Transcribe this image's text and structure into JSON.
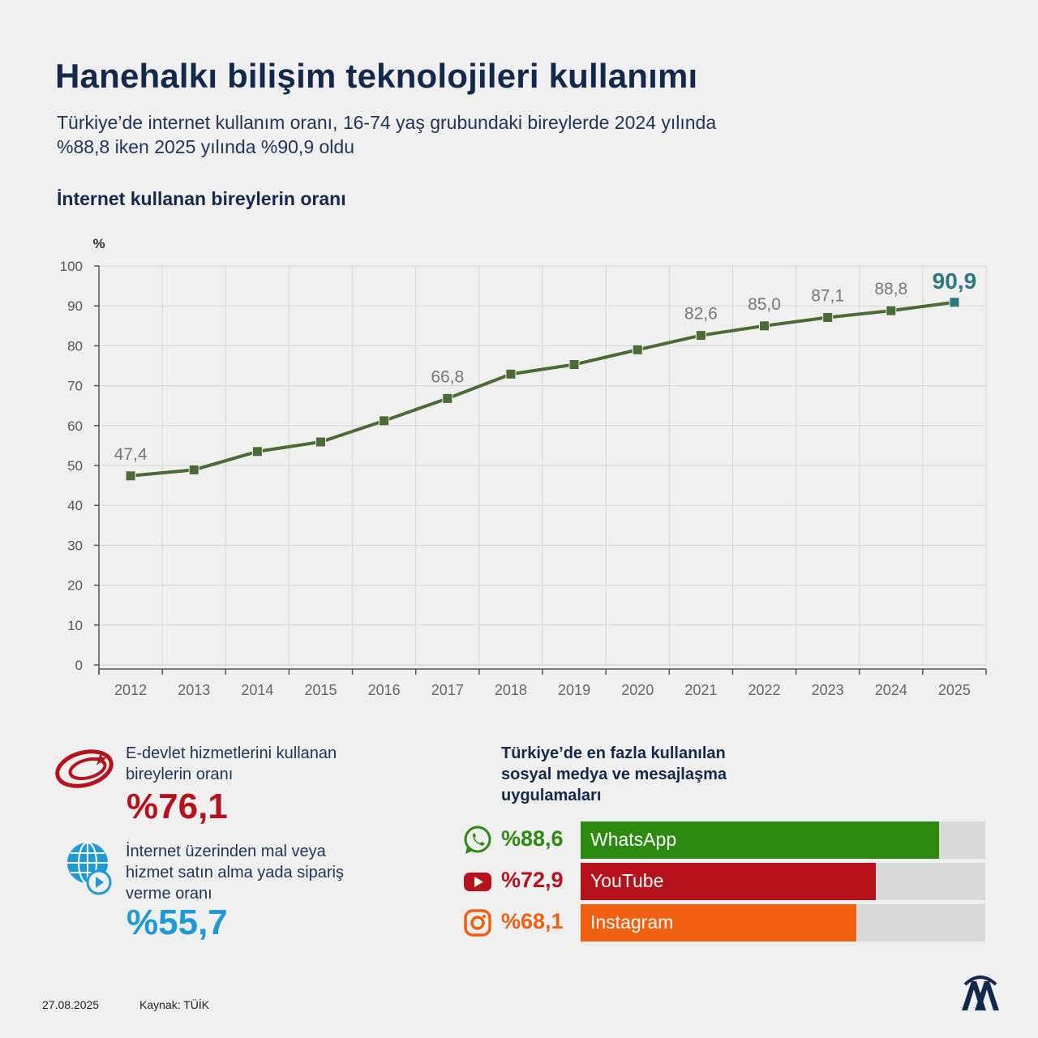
{
  "header": {
    "title": "Hanehalkı bilişim teknolojileri kullanımı",
    "subtitle": "Türkiye’de internet kullanım oranı, 16-74 yaş grubundaki bireylerde 2024 yılında\n%88,8 iken 2025 yılında %90,9 oldu"
  },
  "chart_data": {
    "type": "line",
    "title": "İnternet kullanan bireylerin oranı",
    "ylabel": "%",
    "xlabel": "",
    "ylim": [
      0,
      100
    ],
    "yticks": [
      0,
      10,
      20,
      30,
      40,
      50,
      60,
      70,
      80,
      90,
      100
    ],
    "grid": true,
    "x": [
      "2012",
      "2013",
      "2014",
      "2015",
      "2016",
      "2017",
      "2018",
      "2019",
      "2020",
      "2021",
      "2022",
      "2023",
      "2024",
      "2025"
    ],
    "series": [
      {
        "values": [
          47.4,
          48.9,
          53.5,
          55.9,
          61.2,
          66.8,
          72.9,
          75.3,
          79.0,
          82.6,
          85.0,
          87.1,
          88.8,
          90.9
        ],
        "color": "#4a6b34"
      }
    ],
    "data_labels": [
      {
        "index": 0,
        "text": "47,4"
      },
      {
        "index": 5,
        "text": "66,8"
      },
      {
        "index": 9,
        "text": "82,6"
      },
      {
        "index": 10,
        "text": "85,0"
      },
      {
        "index": 11,
        "text": "87,1"
      },
      {
        "index": 12,
        "text": "88,8"
      },
      {
        "index": 13,
        "text": "90,9",
        "highlight": true
      }
    ],
    "highlight_color": "#2a7a7e"
  },
  "stats": {
    "edevlet": {
      "label": "E-devlet hizmetlerini kullanan\nbireylerin oranı",
      "value": "%76,1",
      "color": "#b5121b",
      "icon": "e-devlet-logo-icon"
    },
    "shopping": {
      "label": "İnternet üzerinden mal veya\nhizmet satın alma yada sipariş\nverme oranı",
      "value": "%55,7",
      "color": "#1e9ad6",
      "icon": "globe-shopping-icon"
    }
  },
  "apps": {
    "title": "Türkiye’de en fazla kullanılan\nsosyal medya ve mesajlaşma\nuygulamaları",
    "items": [
      {
        "name": "WhatsApp",
        "pct_text": "%88,6",
        "value": 88.6,
        "color": "#2b8a0f",
        "icon": "whatsapp-icon"
      },
      {
        "name": "YouTube",
        "pct_text": "%72,9",
        "value": 72.9,
        "color": "#b5121b",
        "icon": "youtube-icon"
      },
      {
        "name": "Instagram",
        "pct_text": "%68,1",
        "value": 68.1,
        "color": "#f06010",
        "icon": "instagram-icon"
      }
    ]
  },
  "footer": {
    "date": "27.08.2025",
    "source": "Kaynak: TÜİK",
    "logo": "aa-logo-icon"
  }
}
